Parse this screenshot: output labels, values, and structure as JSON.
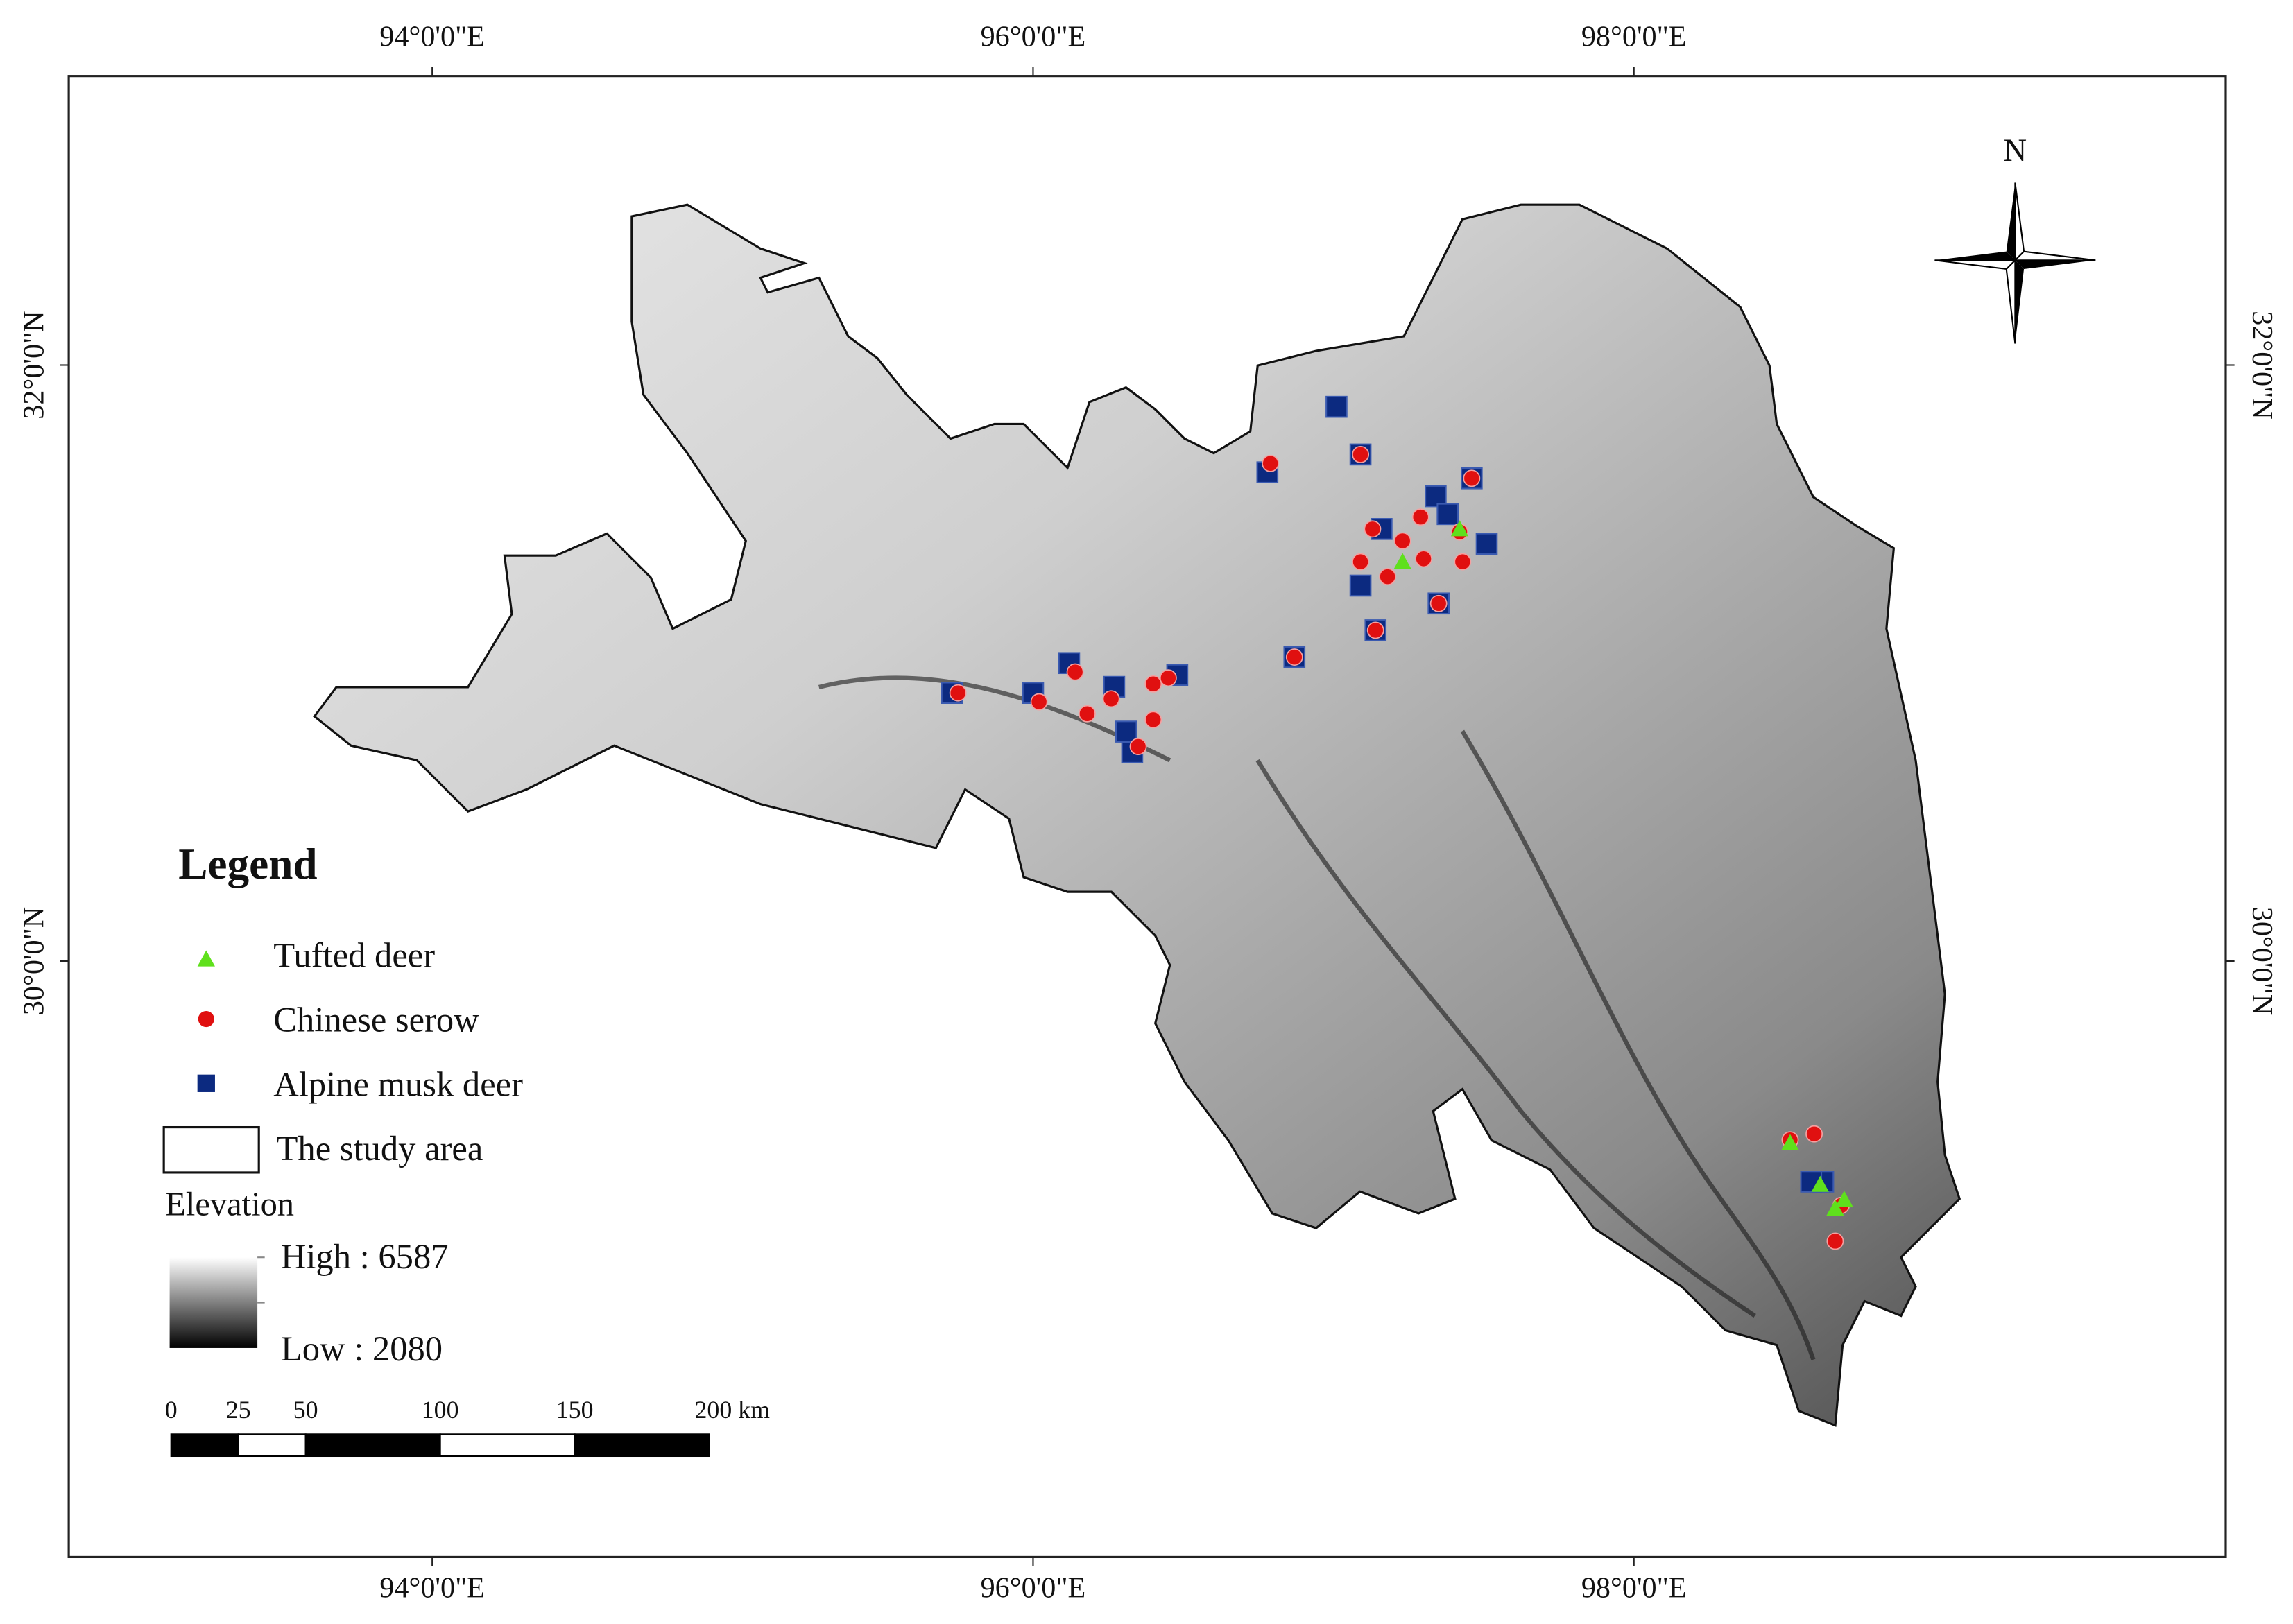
{
  "map": {
    "extent": {
      "lon": [
        92.79,
        99.97
      ],
      "lat": [
        28.0,
        32.97
      ]
    },
    "longitude_ticks": [
      {
        "value": 94,
        "label": "94°0'0\"E"
      },
      {
        "value": 96,
        "label": "96°0'0\"E"
      },
      {
        "value": 98,
        "label": "98°0'0\"E"
      }
    ],
    "latitude_ticks": [
      {
        "value": 32,
        "label": "32°0'0\"N"
      },
      {
        "value": 30,
        "label": "30°0'0\"N"
      }
    ],
    "north_label": "N"
  },
  "legend": {
    "title": "Legend",
    "study_area": "The study area",
    "elevation": {
      "title": "Elevation",
      "high": "High : 6587",
      "low": "Low : 2080"
    }
  },
  "species": [
    {
      "name": "Tufted deer",
      "color": "#5fe01c",
      "shape": "triangle",
      "points": [
        [
          97.23,
          31.34
        ],
        [
          97.42,
          31.45
        ],
        [
          98.52,
          29.39
        ],
        [
          98.62,
          29.25
        ],
        [
          98.67,
          29.17
        ],
        [
          98.7,
          29.2
        ]
      ]
    },
    {
      "name": "Chinese serow",
      "color": "#e01010",
      "shape": "circle",
      "points": [
        [
          96.79,
          31.67
        ],
        [
          97.09,
          31.7
        ],
        [
          97.13,
          31.45
        ],
        [
          97.29,
          31.49
        ],
        [
          97.23,
          31.41
        ],
        [
          97.3,
          31.35
        ],
        [
          97.43,
          31.34
        ],
        [
          97.09,
          31.34
        ],
        [
          97.18,
          31.29
        ],
        [
          97.35,
          31.2
        ],
        [
          97.14,
          31.11
        ],
        [
          96.87,
          31.02
        ],
        [
          97.42,
          31.44
        ],
        [
          97.46,
          31.62
        ],
        [
          95.75,
          30.9
        ],
        [
          96.02,
          30.87
        ],
        [
          96.14,
          30.97
        ],
        [
          96.18,
          30.83
        ],
        [
          96.26,
          30.88
        ],
        [
          96.4,
          30.93
        ],
        [
          96.45,
          30.95
        ],
        [
          96.4,
          30.81
        ],
        [
          96.35,
          30.72
        ],
        [
          98.52,
          29.4
        ],
        [
          98.6,
          29.42
        ],
        [
          98.67,
          29.06
        ],
        [
          98.69,
          29.18
        ]
      ]
    },
    {
      "name": "Alpine musk deer",
      "color": "#0c2a80",
      "shape": "square",
      "points": [
        [
          97.01,
          31.86
        ],
        [
          97.09,
          31.7
        ],
        [
          96.78,
          31.64
        ],
        [
          97.46,
          31.62
        ],
        [
          97.34,
          31.56
        ],
        [
          97.38,
          31.5
        ],
        [
          97.51,
          31.4
        ],
        [
          97.16,
          31.45
        ],
        [
          97.09,
          31.26
        ],
        [
          97.35,
          31.2
        ],
        [
          97.14,
          31.11
        ],
        [
          96.87,
          31.02
        ],
        [
          95.73,
          30.9
        ],
        [
          96.0,
          30.9
        ],
        [
          96.12,
          31.0
        ],
        [
          96.27,
          30.92
        ],
        [
          96.48,
          30.96
        ],
        [
          96.31,
          30.77
        ],
        [
          96.33,
          30.7
        ],
        [
          98.63,
          29.26
        ],
        [
          98.59,
          29.26
        ]
      ]
    }
  ],
  "scale_bar": {
    "ticks": [
      0,
      25,
      50,
      100,
      150,
      {
        "value": 200,
        "label": "200 km"
      }
    ]
  }
}
